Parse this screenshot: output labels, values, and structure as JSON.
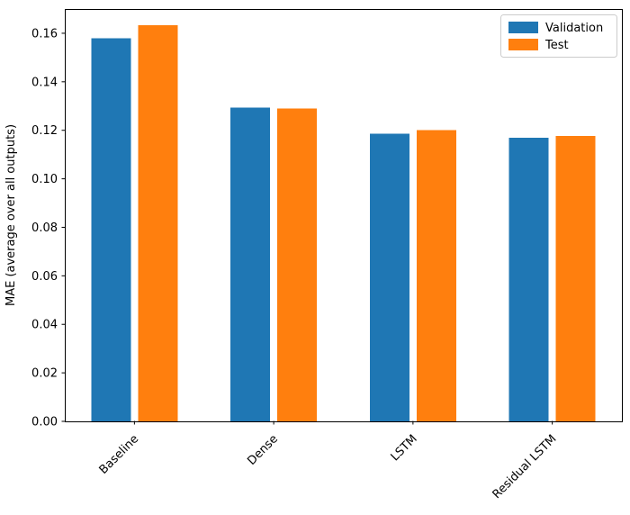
{
  "figure": {
    "background_color": "#ffffff"
  },
  "chart_data": {
    "type": "bar",
    "title": "",
    "categories": [
      "Baseline",
      "Dense",
      "LSTM",
      "Residual LSTM"
    ],
    "series": [
      {
        "name": "Validation",
        "color": "#1f77b4",
        "values": [
          0.158,
          0.1293,
          0.1185,
          0.117
        ]
      },
      {
        "name": "Test",
        "color": "#ff7f0e",
        "values": [
          0.1633,
          0.129,
          0.12,
          0.1177
        ]
      }
    ],
    "xlabel": "",
    "ylabel": "MAE (average over all outputs)",
    "ylim": [
      0,
      0.17
    ],
    "yticks": [
      0.0,
      0.02,
      0.04,
      0.06,
      0.08,
      0.1,
      0.12,
      0.14,
      0.16
    ],
    "ytick_labels": [
      "0.00",
      "0.02",
      "0.04",
      "0.06",
      "0.08",
      "0.10",
      "0.12",
      "0.14",
      "0.16"
    ],
    "xtick_rotation_deg": 45,
    "grid": false,
    "legend": {
      "position": "upper right",
      "entries": [
        {
          "label": "Validation",
          "color": "#1f77b4"
        },
        {
          "label": "Test",
          "color": "#ff7f0e"
        }
      ]
    },
    "axis_color": "#000000",
    "text_color": "#000000",
    "legend_border_color": "#cccccc"
  }
}
